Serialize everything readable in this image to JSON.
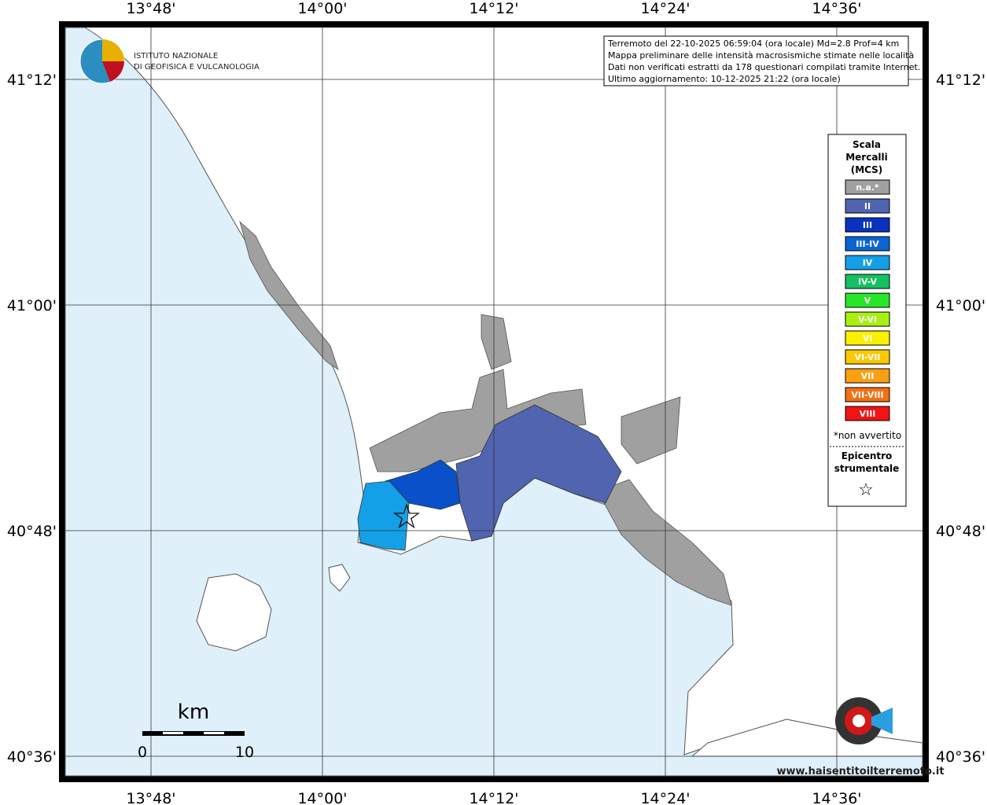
{
  "map": {
    "lon_labels": [
      "13°48'",
      "14°00'",
      "14°12'",
      "14°24'",
      "14°36'"
    ],
    "lat_labels": [
      "41°12'",
      "41°00'",
      "40°48'",
      "40°36'"
    ],
    "info": [
      "Terremoto del 22-10-2025 06:59:04 (ora locale) Md=2.8 Prof=4 km",
      "Mappa preliminare delle intensità macrosismiche stimate nelle località",
      "Dati non verificati estratti da 178 questionari compilati tramite Internet.",
      "Ultimo aggiornamento: 10-12-2025 21:22 (ora locale)"
    ],
    "logo": [
      "ISTITUTO NAZIONALE",
      "DI GEOFISICA E VULCANOLOGIA"
    ],
    "legend": {
      "title": [
        "Scala",
        "Mercalli",
        "(MCS)"
      ],
      "items": [
        {
          "label": "n.a.*",
          "color": "#a0a0a0"
        },
        {
          "label": "II",
          "color": "#5064b0"
        },
        {
          "label": "III",
          "color": "#0a32c0"
        },
        {
          "label": "III-IV",
          "color": "#0a64d2"
        },
        {
          "label": "IV",
          "color": "#14a0e6"
        },
        {
          "label": "IV-V",
          "color": "#14c060"
        },
        {
          "label": "V",
          "color": "#28e628"
        },
        {
          "label": "V-VI",
          "color": "#a8f014"
        },
        {
          "label": "VI",
          "color": "#faf000"
        },
        {
          "label": "VI-VII",
          "color": "#fac800"
        },
        {
          "label": "VII",
          "color": "#faa014"
        },
        {
          "label": "VII-VIII",
          "color": "#f07014"
        },
        {
          "label": "VIII",
          "color": "#f01414"
        }
      ],
      "note": "*non avvertito",
      "epicenter": [
        "Epicentro",
        "strumentale"
      ],
      "star": "☆"
    },
    "scale": {
      "unit": "km",
      "start": "0",
      "end": "10"
    },
    "site": "www.haisentitoilterremoto.it"
  }
}
